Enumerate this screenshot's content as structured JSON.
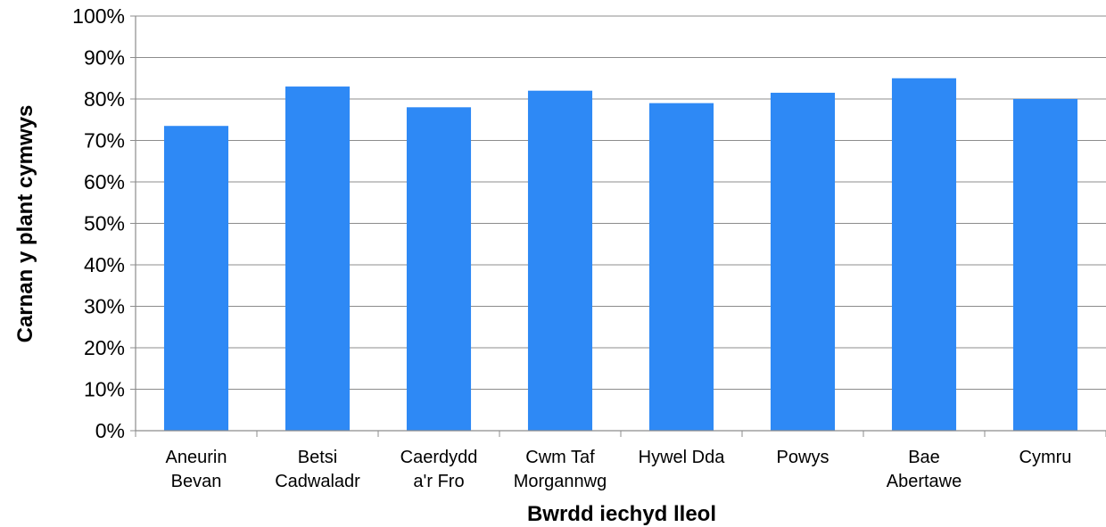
{
  "chart_data": {
    "type": "bar",
    "categories": [
      [
        "Aneurin",
        "Bevan"
      ],
      [
        "Betsi",
        "Cadwaladr"
      ],
      [
        "Caerdydd",
        "a'r Fro"
      ],
      [
        "Cwm Taf",
        "Morgannwg"
      ],
      [
        "Hywel Dda"
      ],
      [
        "Powys"
      ],
      [
        "Bae",
        "Abertawe"
      ],
      [
        "Cymru"
      ]
    ],
    "values": [
      73.5,
      83,
      78,
      82,
      79,
      81.5,
      85,
      80
    ],
    "ylim": [
      0,
      100
    ],
    "yticks": [
      "0%",
      "10%",
      "20%",
      "30%",
      "40%",
      "50%",
      "60%",
      "70%",
      "80%",
      "90%",
      "100%"
    ],
    "xlabel": "Bwrdd iechyd lleol",
    "ylabel": "Carnan y plant cymwys",
    "bar_color": "#2e89f5",
    "grid": true,
    "legend": "none"
  }
}
